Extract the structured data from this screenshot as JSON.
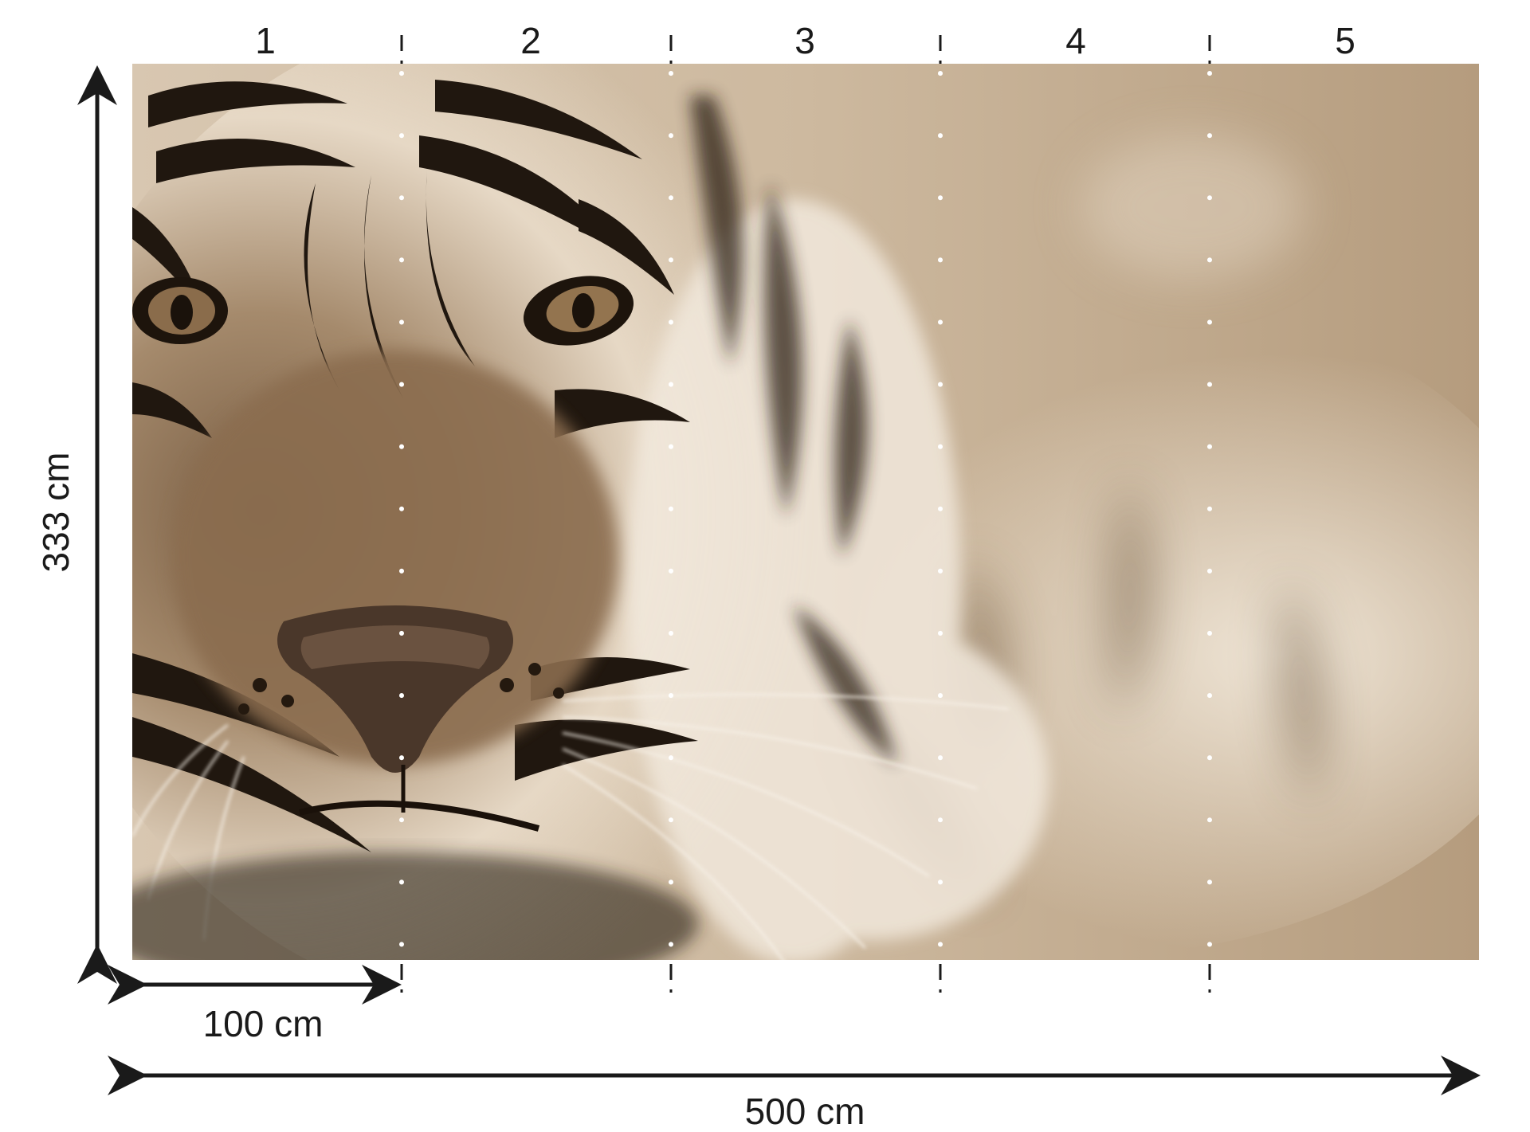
{
  "diagram": {
    "panel_labels": [
      "1",
      "2",
      "3",
      "4",
      "5"
    ],
    "height_label": "333 cm",
    "panel_width_label": "100 cm",
    "total_width_label": "500 cm",
    "total_width_cm": 500,
    "total_height_cm": 333,
    "panel_width_cm": 100,
    "panel_count": 5
  },
  "colors": {
    "sepia_dark": "#2b2016",
    "sepia_mid": "#8a6f52",
    "sepia_light": "#e9dccb",
    "sepia_bg": "#c9b59c",
    "line": "#1a1a1a"
  }
}
